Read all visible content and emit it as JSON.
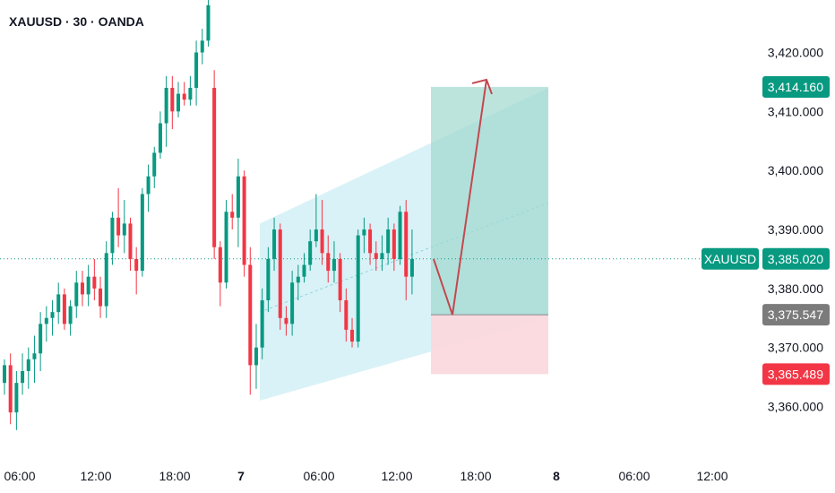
{
  "header": {
    "symbol_title": "XAUUSD · 30 · OANDA"
  },
  "colors": {
    "up": "#089981",
    "down": "#f23645",
    "channel": "#bfe9f1",
    "target_zone": "#9fd9cf",
    "stop_zone": "#fbd7db",
    "arrow": "#c4474f",
    "entry_tag": "#7b7b7b",
    "price_line": "#089981"
  },
  "chart_data": {
    "type": "candlestick",
    "symbol": "XAUUSD",
    "interval": "30",
    "ylim": [
      3356,
      3426
    ],
    "y_ticks": [
      "3,420.000",
      "3,410.000",
      "3,400.000",
      "3,390.000",
      "3,380.000",
      "3,370.000",
      "3,360.000"
    ],
    "y_tick_values": [
      3420,
      3410,
      3400,
      3390,
      3380,
      3370,
      3360
    ],
    "x_ticks": [
      {
        "label": "06:00",
        "bold": false
      },
      {
        "label": "12:00",
        "bold": false
      },
      {
        "label": "18:00",
        "bold": false
      },
      {
        "label": "7",
        "bold": true
      },
      {
        "label": "06:00",
        "bold": false
      },
      {
        "label": "12:00",
        "bold": false
      },
      {
        "label": "18:00",
        "bold": false
      },
      {
        "label": "8",
        "bold": true
      },
      {
        "label": "06:00",
        "bold": false
      },
      {
        "label": "12:00",
        "bold": false
      }
    ],
    "candles": [
      [
        3364,
        3368,
        3362,
        3367
      ],
      [
        3367,
        3369,
        3357,
        3359
      ],
      [
        3359,
        3366,
        3356,
        3364
      ],
      [
        3364,
        3369,
        3362,
        3366
      ],
      [
        3366,
        3370,
        3363,
        3368
      ],
      [
        3368,
        3372,
        3364,
        3369
      ],
      [
        3369,
        3376,
        3366,
        3374
      ],
      [
        3374,
        3377,
        3371,
        3375
      ],
      [
        3375,
        3378,
        3372,
        3376
      ],
      [
        3376,
        3381,
        3374,
        3379
      ],
      [
        3379,
        3380,
        3373,
        3374
      ],
      [
        3374,
        3378,
        3372,
        3377
      ],
      [
        3377,
        3383,
        3375,
        3381
      ],
      [
        3381,
        3383,
        3377,
        3379
      ],
      [
        3379,
        3384,
        3377,
        3382
      ],
      [
        3382,
        3385,
        3378,
        3380
      ],
      [
        3380,
        3382,
        3375,
        3377
      ],
      [
        3377,
        3388,
        3375,
        3386
      ],
      [
        3386,
        3393,
        3384,
        3392
      ],
      [
        3392,
        3397,
        3387,
        3389
      ],
      [
        3389,
        3395,
        3386,
        3391
      ],
      [
        3391,
        3392,
        3383,
        3385
      ],
      [
        3385,
        3387,
        3379,
        3383
      ],
      [
        3383,
        3397,
        3382,
        3396
      ],
      [
        3396,
        3401,
        3393,
        3399
      ],
      [
        3399,
        3404,
        3397,
        3403
      ],
      [
        3403,
        3410,
        3402,
        3408
      ],
      [
        3408,
        3416,
        3404,
        3414
      ],
      [
        3414,
        3416,
        3407,
        3410
      ],
      [
        3410,
        3415,
        3409,
        3413
      ],
      [
        3413,
        3415,
        3411,
        3412
      ],
      [
        3412,
        3416,
        3411,
        3414
      ],
      [
        3414,
        3422,
        3411,
        3420
      ],
      [
        3420,
        3424,
        3418,
        3422
      ],
      [
        3422,
        3429,
        3421,
        3428
      ],
      [
        3414,
        3417,
        3385,
        3387
      ],
      [
        3387,
        3388,
        3377,
        3381
      ],
      [
        3381,
        3395,
        3380,
        3393
      ],
      [
        3393,
        3396,
        3390,
        3392
      ],
      [
        3392,
        3402,
        3387,
        3399
      ],
      [
        3399,
        3400,
        3382,
        3384
      ],
      [
        3384,
        3387,
        3362,
        3367
      ],
      [
        3367,
        3374,
        3363,
        3370
      ],
      [
        3370,
        3380,
        3368,
        3378
      ],
      [
        3378,
        3387,
        3376,
        3385
      ],
      [
        3385,
        3392,
        3383,
        3390
      ],
      [
        3390,
        3391,
        3373,
        3375
      ],
      [
        3375,
        3377,
        3372,
        3374
      ],
      [
        3374,
        3383,
        3372,
        3381
      ],
      [
        3381,
        3384,
        3378,
        3382
      ],
      [
        3382,
        3386,
        3381,
        3384
      ],
      [
        3384,
        3390,
        3383,
        3388
      ],
      [
        3388,
        3396,
        3387,
        3390
      ],
      [
        3390,
        3395,
        3384,
        3386
      ],
      [
        3386,
        3389,
        3381,
        3383
      ],
      [
        3383,
        3388,
        3381,
        3385
      ],
      [
        3385,
        3386,
        3376,
        3378
      ],
      [
        3378,
        3380,
        3371,
        3373
      ],
      [
        3373,
        3375,
        3370,
        3371
      ],
      [
        3371,
        3390,
        3370,
        3389
      ],
      [
        3389,
        3392,
        3386,
        3390
      ],
      [
        3390,
        3391,
        3384,
        3386
      ],
      [
        3386,
        3388,
        3383,
        3385
      ],
      [
        3385,
        3389,
        3383,
        3386
      ],
      [
        3386,
        3392,
        3384,
        3390
      ],
      [
        3390,
        3391,
        3383,
        3385
      ],
      [
        3385,
        3394,
        3384,
        3393
      ],
      [
        3393,
        3395,
        3378,
        3382
      ],
      [
        3382,
        3390,
        3379,
        3385
      ]
    ],
    "annotations": {
      "current_price": {
        "symbol_label": "XAUUSD",
        "value": 3385.02,
        "label": "3,385.020"
      },
      "target": {
        "value": 3414.16,
        "label": "3,414.160"
      },
      "entry": {
        "value": 3375.547,
        "label": "3,375.547"
      },
      "stop": {
        "value": 3365.489,
        "label": "3,365.489"
      },
      "channel": {
        "lower_start": 3361,
        "lower_end": 3375,
        "upper_start": 3391,
        "upper_end": 3414
      },
      "projection": {
        "start": 3375.547,
        "end": 3414.16
      }
    },
    "grid": false
  }
}
